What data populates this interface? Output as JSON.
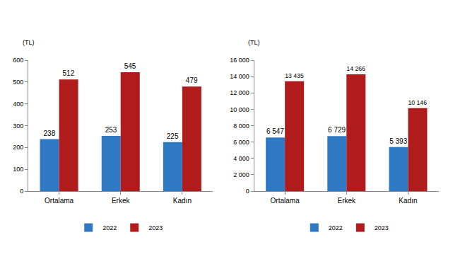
{
  "chart_data": [
    {
      "type": "bar",
      "y_label": "(TL)",
      "categories": [
        "Ortalama",
        "Erkek",
        "Kadın"
      ],
      "series": [
        {
          "name": "2022",
          "color": "#2f78c4",
          "values": [
            238,
            253,
            225
          ]
        },
        {
          "name": "2023",
          "color": "#b01c1c",
          "values": [
            512,
            545,
            479
          ]
        }
      ],
      "ylim": [
        0,
        600
      ],
      "yticks": [
        0,
        100,
        200,
        300,
        400,
        500,
        600
      ],
      "grid": false,
      "data_labels": true,
      "legend": "bottom"
    },
    {
      "type": "bar",
      "y_label": "(TL)",
      "categories": [
        "Ortalama",
        "Erkek",
        "Kadın"
      ],
      "series": [
        {
          "name": "2022",
          "color": "#2f78c4",
          "values": [
            6547,
            6729,
            5393
          ],
          "value_labels": [
            "6 547",
            "6 729",
            "5 393"
          ]
        },
        {
          "name": "2023",
          "color": "#b01c1c",
          "values": [
            13435,
            14266,
            10146
          ],
          "value_labels": [
            "13 435",
            "14 266",
            "10 146"
          ]
        }
      ],
      "ylim": [
        0,
        16000
      ],
      "yticks": [
        0,
        {
          "value": 2000,
          "label": "2 000"
        },
        {
          "value": 4000,
          "label": "4 000"
        },
        {
          "value": 6000,
          "label": "6 000"
        },
        {
          "value": 8000,
          "label": "8 000"
        },
        {
          "value": 10000,
          "label": "10 000"
        },
        {
          "value": 12000,
          "label": "12 000"
        },
        {
          "value": 14000,
          "label": "14 000"
        },
        {
          "value": 16000,
          "label": "16 000"
        }
      ],
      "grid": false,
      "data_labels": true,
      "legend": "bottom"
    }
  ]
}
